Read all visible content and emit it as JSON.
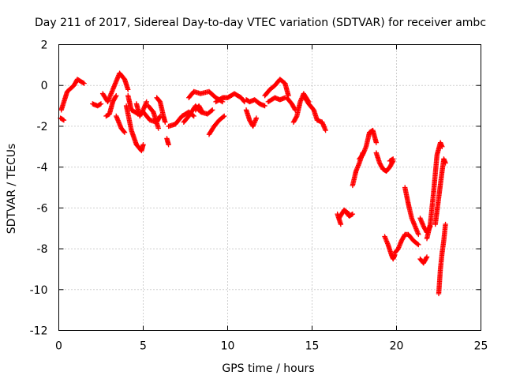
{
  "chart_data": {
    "type": "scatter",
    "title": "Day 211 of 2017, Sidereal Day-to-day VTEC variation (SDTVAR) for receiver ambc",
    "xlabel": "GPS time / hours",
    "ylabel": "SDTVAR / TECUs",
    "xlim": [
      0,
      25
    ],
    "ylim": [
      -12,
      2
    ],
    "xticks": [
      0,
      5,
      10,
      15,
      20,
      25
    ],
    "yticks": [
      -12,
      -10,
      -8,
      -6,
      -4,
      -2,
      0,
      2
    ],
    "grid": true,
    "marker": "plus",
    "color": "#ff0000",
    "series": [
      {
        "name": "SDTVAR",
        "segments": [
          {
            "t": [
              0.1,
              0.3
            ],
            "v": [
              -1.6,
              -1.7
            ]
          },
          {
            "t": [
              0.15,
              0.5,
              0.9,
              1.1,
              1.5
            ],
            "v": [
              -1.2,
              -0.3,
              0.0,
              0.3,
              0.1
            ]
          },
          {
            "t": [
              2.0,
              2.3,
              2.5
            ],
            "v": [
              -0.9,
              -1.0,
              -0.9
            ]
          },
          {
            "t": [
              2.6,
              2.9,
              3.3,
              3.6,
              3.9,
              4.1
            ],
            "v": [
              -0.4,
              -0.8,
              0.0,
              0.6,
              0.3,
              -0.2
            ]
          },
          {
            "t": [
              2.8,
              3.0,
              3.2,
              3.4
            ],
            "v": [
              -1.5,
              -1.4,
              -0.8,
              -0.5
            ]
          },
          {
            "t": [
              3.4,
              3.7,
              3.9
            ],
            "v": [
              -1.5,
              -2.1,
              -2.3
            ]
          },
          {
            "t": [
              4.1,
              4.3,
              4.7
            ],
            "v": [
              -0.5,
              -1.2,
              -1.4
            ]
          },
          {
            "t": [
              4.0,
              4.3,
              4.6,
              4.9,
              5.0
            ],
            "v": [
              -1.0,
              -2.2,
              -2.9,
              -3.2,
              -2.9
            ]
          },
          {
            "t": [
              4.6,
              4.8,
              5.0,
              5.2
            ],
            "v": [
              -0.9,
              -1.5,
              -1.2,
              -0.8
            ]
          },
          {
            "t": [
              5.0,
              5.4,
              5.8,
              6.0
            ],
            "v": [
              -1.3,
              -1.7,
              -1.8,
              -1.5
            ]
          },
          {
            "t": [
              5.3,
              5.6,
              5.9
            ],
            "v": [
              -1.0,
              -1.3,
              -2.1
            ]
          },
          {
            "t": [
              5.8,
              6.0,
              6.2,
              6.3
            ],
            "v": [
              -0.6,
              -0.8,
              -1.5,
              -1.8
            ]
          },
          {
            "t": [
              6.4,
              6.5
            ],
            "v": [
              -2.6,
              -2.9
            ]
          },
          {
            "t": [
              6.5,
              6.9,
              7.3,
              7.7,
              8.0
            ],
            "v": [
              -2.0,
              -1.9,
              -1.5,
              -1.3,
              -1.5
            ]
          },
          {
            "t": [
              7.4,
              7.7,
              8.1,
              8.4,
              8.8,
              9.1
            ],
            "v": [
              -1.8,
              -1.5,
              -1.0,
              -1.3,
              -1.4,
              -1.2
            ]
          },
          {
            "t": [
              7.7,
              8.0,
              8.4,
              8.9,
              9.3,
              9.7
            ],
            "v": [
              -0.6,
              -0.3,
              -0.4,
              -0.3,
              -0.6,
              -0.8
            ]
          },
          {
            "t": [
              8.1,
              8.3,
              8.5
            ],
            "v": [
              -1.2,
              -1.0,
              -1.3
            ]
          },
          {
            "t": [
              8.9,
              9.2,
              9.5,
              9.8
            ],
            "v": [
              -2.4,
              -2.0,
              -1.7,
              -1.5
            ]
          },
          {
            "t": [
              9.3,
              9.7,
              10.0,
              10.4,
              10.8,
              11.0
            ],
            "v": [
              -0.8,
              -0.6,
              -0.6,
              -0.4,
              -0.6,
              -0.8
            ]
          },
          {
            "t": [
              11.1,
              11.3,
              11.6,
              11.9,
              12.2
            ],
            "v": [
              -0.7,
              -0.8,
              -0.7,
              -0.9,
              -1.0
            ]
          },
          {
            "t": [
              11.1,
              11.3,
              11.5,
              11.7
            ],
            "v": [
              -1.2,
              -1.7,
              -2.0,
              -1.6
            ]
          },
          {
            "t": [
              12.2,
              12.5,
              12.8,
              13.1,
              13.4,
              13.6
            ],
            "v": [
              -0.5,
              -0.2,
              0.0,
              0.3,
              0.1,
              -0.5
            ]
          },
          {
            "t": [
              12.4,
              12.8,
              13.1,
              13.4
            ],
            "v": [
              -0.8,
              -0.6,
              -0.7,
              -0.6
            ]
          },
          {
            "t": [
              13.5,
              13.8,
              14.0
            ],
            "v": [
              -0.6,
              -0.9,
              -1.2
            ]
          },
          {
            "t": [
              13.9,
              14.1,
              14.3,
              14.5,
              14.8
            ],
            "v": [
              -1.8,
              -1.5,
              -0.8,
              -0.4,
              -0.8
            ]
          },
          {
            "t": [
              14.5,
              14.8,
              15.1,
              15.3,
              15.6,
              15.8
            ],
            "v": [
              -0.5,
              -0.9,
              -1.2,
              -1.7,
              -1.8,
              -2.2
            ]
          },
          {
            "t": [
              16.5,
              16.7
            ],
            "v": [
              -6.3,
              -6.8
            ]
          },
          {
            "t": [
              16.6,
              16.9,
              17.2
            ],
            "v": [
              -6.5,
              -6.1,
              -6.3
            ]
          },
          {
            "t": [
              17.0,
              17.2,
              17.4
            ],
            "v": [
              -6.2,
              -6.4,
              -6.3
            ]
          },
          {
            "t": [
              17.4,
              17.6,
              17.8,
              18.0
            ],
            "v": [
              -4.9,
              -4.2,
              -3.8,
              -3.3
            ]
          },
          {
            "t": [
              17.8,
              18.0,
              18.2,
              18.4,
              18.6,
              18.8
            ],
            "v": [
              -3.6,
              -3.4,
              -3.0,
              -2.3,
              -2.2,
              -2.8
            ]
          },
          {
            "t": [
              18.8,
              19.0,
              19.2,
              19.4,
              19.6,
              19.8
            ],
            "v": [
              -3.3,
              -3.8,
              -4.1,
              -4.2,
              -4.0,
              -3.7
            ]
          },
          {
            "t": [
              19.6,
              19.8
            ],
            "v": [
              -3.7,
              -3.6
            ]
          },
          {
            "t": [
              19.3,
              19.5,
              19.7,
              19.8,
              19.9
            ],
            "v": [
              -7.4,
              -7.8,
              -8.3,
              -8.5,
              -8.3
            ]
          },
          {
            "t": [
              19.9,
              20.1,
              20.3,
              20.5,
              20.7,
              21.0,
              21.3
            ],
            "v": [
              -8.2,
              -8.0,
              -7.6,
              -7.3,
              -7.3,
              -7.6,
              -7.8
            ]
          },
          {
            "t": [
              20.5,
              20.7,
              20.9,
              21.1,
              21.3
            ],
            "v": [
              -5.0,
              -5.8,
              -6.5,
              -6.9,
              -7.3
            ]
          },
          {
            "t": [
              21.4,
              21.6,
              21.8
            ],
            "v": [
              -8.5,
              -8.7,
              -8.4
            ]
          },
          {
            "t": [
              21.4,
              21.6,
              21.8,
              22.0
            ],
            "v": [
              -6.5,
              -6.9,
              -7.2,
              -6.9
            ]
          },
          {
            "t": [
              21.8,
              22.0,
              22.2,
              22.4,
              22.6,
              22.7
            ],
            "v": [
              -7.5,
              -6.8,
              -5.2,
              -3.4,
              -2.8,
              -3.0
            ]
          },
          {
            "t": [
              22.3,
              22.5,
              22.7,
              22.8,
              22.9
            ],
            "v": [
              -6.8,
              -5.5,
              -4.2,
              -3.6,
              -3.8
            ]
          },
          {
            "t": [
              22.5,
              22.6,
              22.7,
              22.8,
              22.9
            ],
            "v": [
              -10.2,
              -9.0,
              -8.2,
              -7.6,
              -6.8
            ]
          }
        ]
      }
    ]
  }
}
